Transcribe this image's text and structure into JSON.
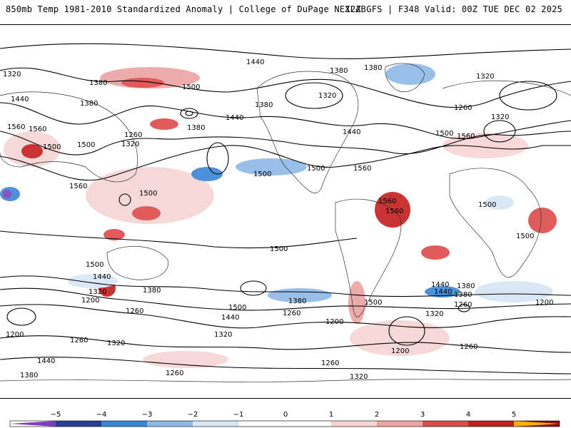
{
  "header": {
    "title_left": "850mb Temp 1981-2010 Standardized Anomaly | College of DuPage NEXLAB",
    "title_right": "12Z GFS | F348 Valid: 00Z TUE DEC 02 2025"
  },
  "map": {
    "contour_labels": [
      "1320",
      "1380",
      "1440",
      "1500",
      "1560",
      "1380",
      "1380",
      "1320",
      "1320",
      "1440",
      "1380",
      "1260",
      "1500",
      "1320",
      "1560",
      "1500",
      "1380",
      "1440",
      "1380",
      "1260",
      "1320",
      "1440",
      "1500",
      "1560",
      "1500",
      "1500",
      "1560",
      "1560",
      "1500",
      "1560",
      "1560",
      "1500",
      "1500",
      "1500",
      "1380",
      "1500",
      "1500",
      "1440",
      "1320",
      "1200",
      "1380",
      "1260",
      "1500",
      "1440",
      "1440",
      "1380",
      "1260",
      "1320",
      "1200",
      "1200",
      "1260",
      "1440",
      "1380",
      "1320",
      "1200",
      "1260",
      "1320",
      "1440",
      "1260",
      "1260",
      "1320",
      "1200",
      "1260",
      "1380"
    ],
    "legend_colors": [
      "#7b3fbf",
      "#26408f",
      "#3a86d6",
      "#8fb8e6",
      "#d7e6f4",
      "#ffffff",
      "#f7d4d4",
      "#eca3a3",
      "#dd4b4b",
      "#c41e1e",
      "#8c0c0c",
      "#f5b000"
    ],
    "colorbar_ticks": [
      "−5",
      "−4",
      "−3",
      "−2",
      "−1",
      "0",
      "1",
      "2",
      "3",
      "4",
      "5"
    ]
  }
}
